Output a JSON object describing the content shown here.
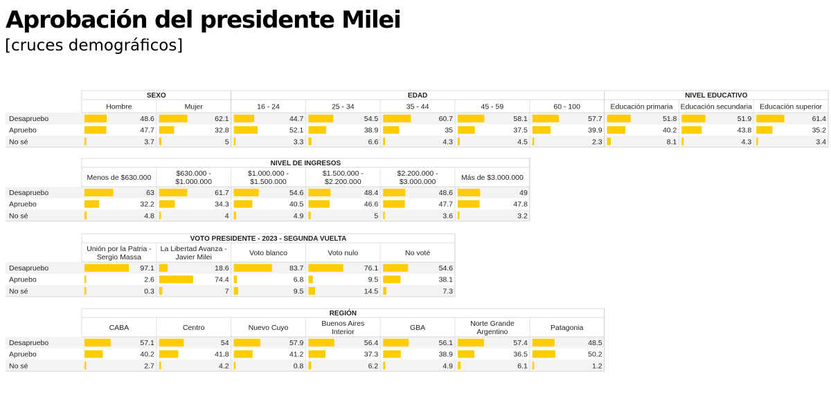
{
  "title": "Aprobación del presidente Milei",
  "subtitle": "[cruces demográficos]",
  "bar_color": "#FFCC00",
  "chart_data": [
    {
      "type": "table",
      "row_labels": [
        "Desapruebo",
        "Apruebo",
        "No sé"
      ],
      "groups": [
        {
          "label": "SEXO",
          "columns": [
            {
              "label": "Hombre",
              "values": [
                48.6,
                47.7,
                3.7
              ]
            },
            {
              "label": "Mujer",
              "values": [
                62.1,
                32.8,
                5
              ]
            }
          ]
        },
        {
          "label": "EDAD",
          "columns": [
            {
              "label": "16 - 24",
              "values": [
                44.7,
                52.1,
                3.3
              ]
            },
            {
              "label": "25 - 34",
              "values": [
                54.5,
                38.9,
                6.6
              ]
            },
            {
              "label": "35 - 44",
              "values": [
                60.7,
                35,
                4.3
              ]
            },
            {
              "label": "45 - 59",
              "values": [
                58.1,
                37.5,
                4.5
              ]
            },
            {
              "label": "60 - 100",
              "values": [
                57.7,
                39.9,
                2.3
              ]
            }
          ]
        },
        {
          "label": "NIVEL EDUCATIVO",
          "columns": [
            {
              "label": "Educación primaria",
              "values": [
                51.8,
                40.2,
                8.1
              ]
            },
            {
              "label": "Educación secundaria",
              "values": [
                51.9,
                43.8,
                4.3
              ]
            },
            {
              "label": "Educación superior",
              "values": [
                61.4,
                35.2,
                3.4
              ]
            }
          ]
        }
      ]
    },
    {
      "type": "table",
      "row_labels": [
        "Desapruebo",
        "Apruebo",
        "No sé"
      ],
      "groups": [
        {
          "label": "NIVEL DE INGRESOS",
          "columns": [
            {
              "label": "Menos de $630.000",
              "values": [
                63,
                32.2,
                4.8
              ]
            },
            {
              "label": "$630.000 - $1.000.000",
              "values": [
                61.7,
                34.3,
                4
              ]
            },
            {
              "label": "$1.000.000 - $1.500.000",
              "values": [
                54.6,
                40.5,
                4.9
              ]
            },
            {
              "label": "$1.500.000 - $2.200.000",
              "values": [
                48.4,
                46.6,
                5
              ]
            },
            {
              "label": "$2.200.000 - $3.000.000",
              "values": [
                48.6,
                47.7,
                3.6
              ]
            },
            {
              "label": "Más de $3.000.000",
              "values": [
                49,
                47.8,
                3.2
              ]
            }
          ]
        }
      ]
    },
    {
      "type": "table",
      "row_labels": [
        "Desapruebo",
        "Apruebo",
        "No sé"
      ],
      "groups": [
        {
          "label": "VOTO PRESIDENTE - 2023 - SEGUNDA VUELTA",
          "columns": [
            {
              "label": "Unión por la Patria - Sergio Massa",
              "values": [
                97.1,
                2.6,
                0.3
              ]
            },
            {
              "label": "La Libertad Avanza - Javier Milei",
              "values": [
                18.6,
                74.4,
                7
              ]
            },
            {
              "label": "Voto blanco",
              "values": [
                83.7,
                6.8,
                9.5
              ]
            },
            {
              "label": "Voto nulo",
              "values": [
                76.1,
                9.5,
                14.5
              ]
            },
            {
              "label": "No voté",
              "values": [
                54.6,
                38.1,
                7.3
              ]
            }
          ]
        }
      ]
    },
    {
      "type": "table",
      "row_labels": [
        "Desapruebo",
        "Apruebo",
        "No sé"
      ],
      "groups": [
        {
          "label": "REGIÓN",
          "columns": [
            {
              "label": "CABA",
              "values": [
                57.1,
                40.2,
                2.7
              ]
            },
            {
              "label": "Centro",
              "values": [
                54,
                41.8,
                4.2
              ]
            },
            {
              "label": "Nuevo Cuyo",
              "values": [
                57.9,
                41.2,
                0.8
              ]
            },
            {
              "label": "Buenos Aires Interior",
              "values": [
                56.4,
                37.3,
                6.2
              ]
            },
            {
              "label": "GBA",
              "values": [
                56.1,
                38.9,
                4.9
              ]
            },
            {
              "label": "Norte Grande Argentino",
              "values": [
                57.4,
                36.5,
                6.1
              ]
            },
            {
              "label": "Patagonia",
              "values": [
                48.5,
                50.2,
                1.2
              ]
            }
          ]
        }
      ]
    }
  ]
}
